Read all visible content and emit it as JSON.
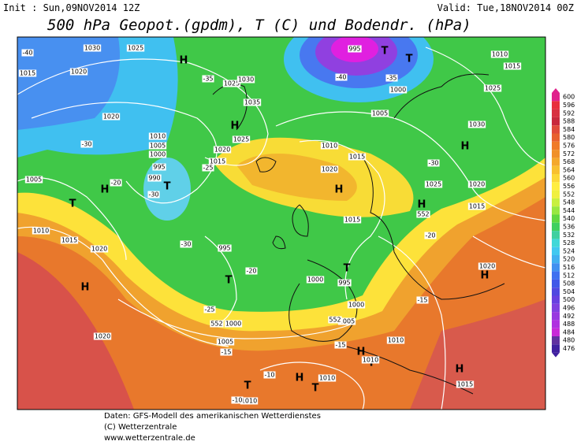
{
  "header": {
    "init": "Init : Sun,09NOV2014 12Z",
    "valid": "Valid: Tue,18NOV2014 00Z",
    "title": "500 hPa Geopot.(gpdm), T (C) und Bodendr. (hPa)"
  },
  "footer": [
    "Daten: GFS-Modell des amerikanischen Wetterdienstes",
    "(C) Wetterzentrale",
    "www.wetterzentrale.de"
  ],
  "map_labels": [
    "1030",
    "1025",
    "H",
    "1025",
    "1030",
    "1020",
    "1015",
    "1035",
    "H",
    "1025",
    "1020",
    "1015",
    "1020",
    "1010",
    "1005",
    "1000",
    "995",
    "990",
    "T",
    "H",
    "T",
    "1005",
    "1010",
    "1015",
    "1020",
    "H",
    "1020",
    "995",
    "T",
    "1000",
    "1005",
    "1010",
    "T",
    "H",
    "T",
    "1000",
    "995",
    "T",
    "1000",
    "1005",
    "H",
    "1015",
    "1020",
    "1015",
    "1010",
    "1005",
    "1000",
    "995",
    "T",
    "T",
    "1010",
    "1015",
    "1025",
    "H",
    "1030",
    "1025",
    "1020",
    "1015",
    "H",
    "552",
    "1020",
    "H",
    "H",
    "T",
    "1010",
    "1010",
    "H",
    "1015",
    "1010",
    "552",
    "552",
    "-40",
    "-35",
    "-30",
    "-25",
    "-20",
    "-30",
    "-30",
    "-20",
    "-25",
    "-20",
    "-15",
    "-15",
    "-15",
    "-10",
    "-10",
    "-30",
    "-35",
    "-40"
  ],
  "legend": {
    "levels": [
      600,
      596,
      592,
      588,
      584,
      580,
      576,
      572,
      568,
      564,
      560,
      556,
      552,
      548,
      544,
      540,
      536,
      532,
      528,
      524,
      520,
      516,
      512,
      508,
      504,
      500,
      496,
      492,
      488,
      484,
      480,
      476
    ],
    "colors": [
      "#e0208c",
      "#e8303c",
      "#d83040",
      "#c8283c",
      "#e04a3a",
      "#e8602e",
      "#f07a28",
      "#f09028",
      "#f4a82c",
      "#f8c030",
      "#fcd838",
      "#ffee40",
      "#f0f040",
      "#c8f040",
      "#98e840",
      "#60d840",
      "#40d060",
      "#40d0a0",
      "#40d8d8",
      "#40c8f0",
      "#40b0f0",
      "#4090f0",
      "#4070f0",
      "#4058e8",
      "#5048e0",
      "#6840e0",
      "#8040e0",
      "#9838e0",
      "#b030e0",
      "#c828d8",
      "#6030a0",
      "#4020a0"
    ]
  }
}
